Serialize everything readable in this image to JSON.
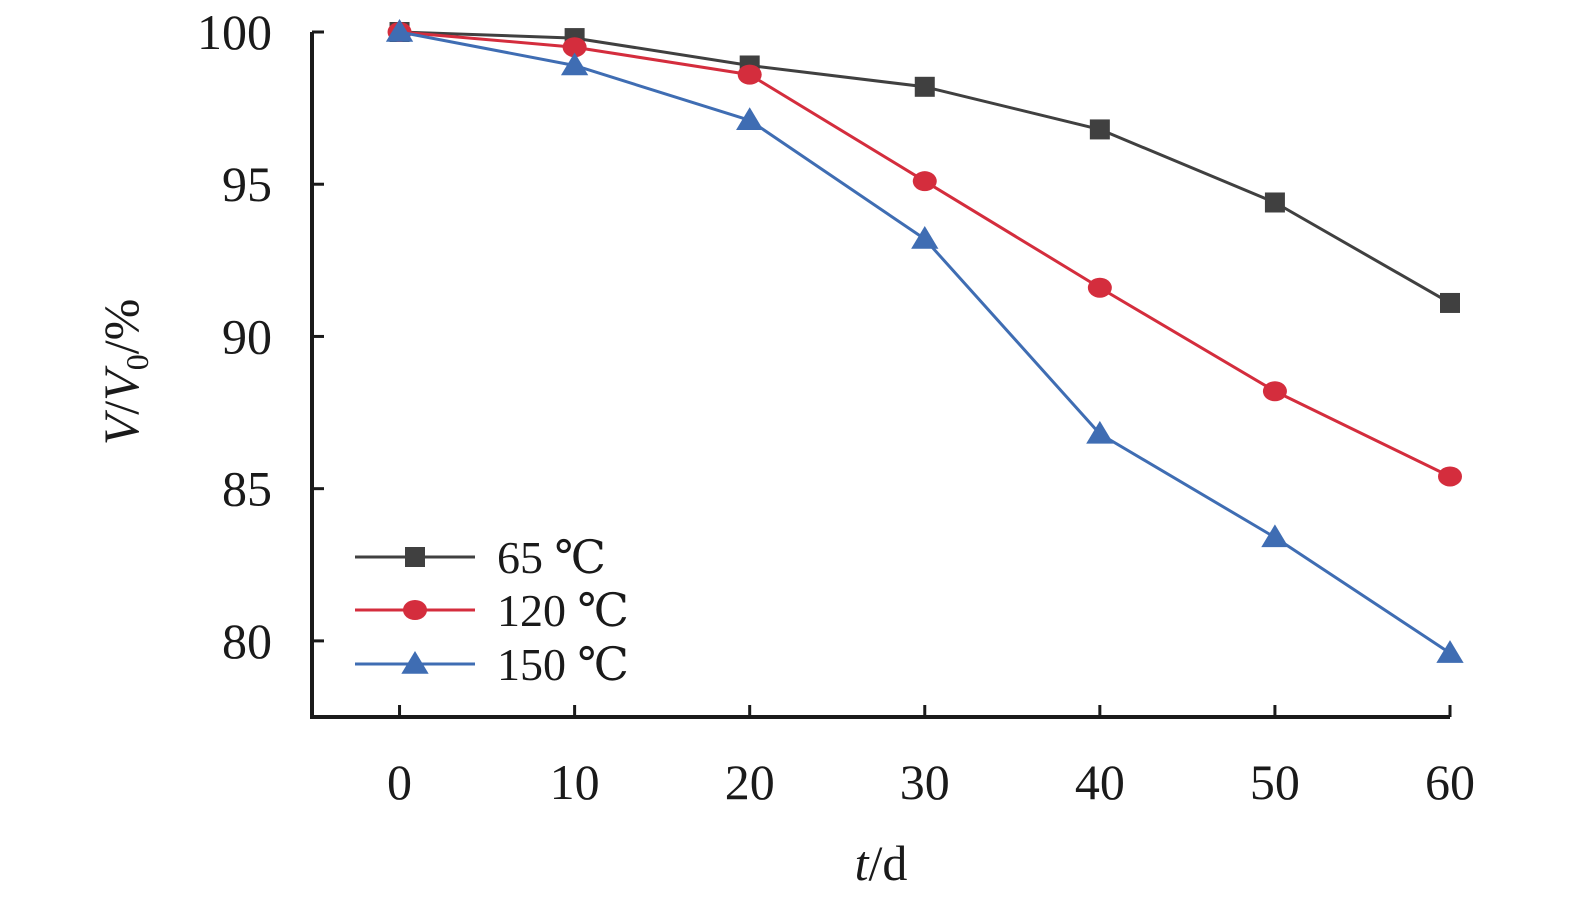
{
  "chart_data": {
    "type": "line",
    "title": "",
    "xlabel": {
      "italic": "t",
      "rest": "/d"
    },
    "ylabel": {
      "italic_main": "V",
      "slash": "/",
      "italic_sub_base": "V",
      "subscript": "0",
      "rest": "/%"
    },
    "x": [
      0,
      10,
      20,
      30,
      40,
      50,
      60
    ],
    "x_ticks": [
      "0",
      "10",
      "20",
      "30",
      "40",
      "50",
      "60"
    ],
    "y_ticks": [
      "80",
      "85",
      "90",
      "95",
      "100"
    ],
    "xlim": [
      -5,
      60
    ],
    "ylim": [
      77.5,
      100
    ],
    "grid": false,
    "legend_position": "bottom-left",
    "series": [
      {
        "name": "65 ℃",
        "marker": "square",
        "color": "#404040",
        "values": [
          100,
          99.8,
          98.9,
          98.2,
          96.8,
          94.4,
          91.1
        ]
      },
      {
        "name": "120 ℃",
        "marker": "circle",
        "color": "#d42d3d",
        "values": [
          100,
          99.5,
          98.6,
          95.1,
          91.6,
          88.2,
          85.4
        ]
      },
      {
        "name": "150 ℃",
        "marker": "triangle",
        "color": "#3f6db3",
        "values": [
          100,
          98.9,
          97.1,
          93.2,
          86.8,
          83.4,
          79.6
        ]
      }
    ]
  }
}
